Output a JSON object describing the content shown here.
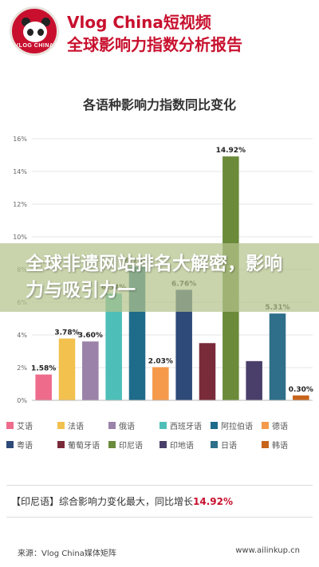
{
  "header": {
    "logo_text": "VLOG CHINA",
    "title_line1": "Vlog China短视频",
    "title_line2": "全球影响力指数分析报告"
  },
  "overlay": {
    "text": "全球非遗网站排名大解密，影响力与吸引力一"
  },
  "summary": {
    "prefix": "【印尼语】综合影响力变化最大，同比增长",
    "highlight": "14.92%"
  },
  "footer": {
    "source": "来源：Vlog China媒体矩阵",
    "url": "www.ailinkup.cn"
  },
  "chart_data": {
    "type": "bar",
    "title": "各语种影响力指数同比变化",
    "ylim": [
      0,
      16
    ],
    "yticks": [
      "0%",
      "2%",
      "4%",
      "6%",
      "8%",
      "10%",
      "12%",
      "14%",
      "16%"
    ],
    "grid": true,
    "legend_position": "bottom",
    "categories": [
      "艾语",
      "法语",
      "俄语",
      "西班牙语",
      "阿拉伯语",
      "德语",
      "粤语",
      "葡萄牙语",
      "印尼语",
      "印地语",
      "日语",
      "韩语"
    ],
    "values": [
      1.58,
      3.78,
      3.6,
      6.54,
      8.18,
      2.03,
      6.76,
      3.5,
      14.92,
      2.4,
      5.31,
      0.3
    ],
    "value_labels": [
      "1.58%",
      "3.78%",
      "3.60%",
      "6.54%",
      "8.18%",
      "2.03%",
      "6.76%",
      "",
      "14.92%",
      "",
      "5.31%",
      "0.30%"
    ],
    "colors": [
      "#ee6b8c",
      "#f2c14e",
      "#9a82a8",
      "#4dbfb8",
      "#1f6b8a",
      "#f59a4a",
      "#2d4a78",
      "#7a2b3a",
      "#6b8a3a",
      "#4a3f6b",
      "#2f6f8a",
      "#c8641a"
    ]
  }
}
